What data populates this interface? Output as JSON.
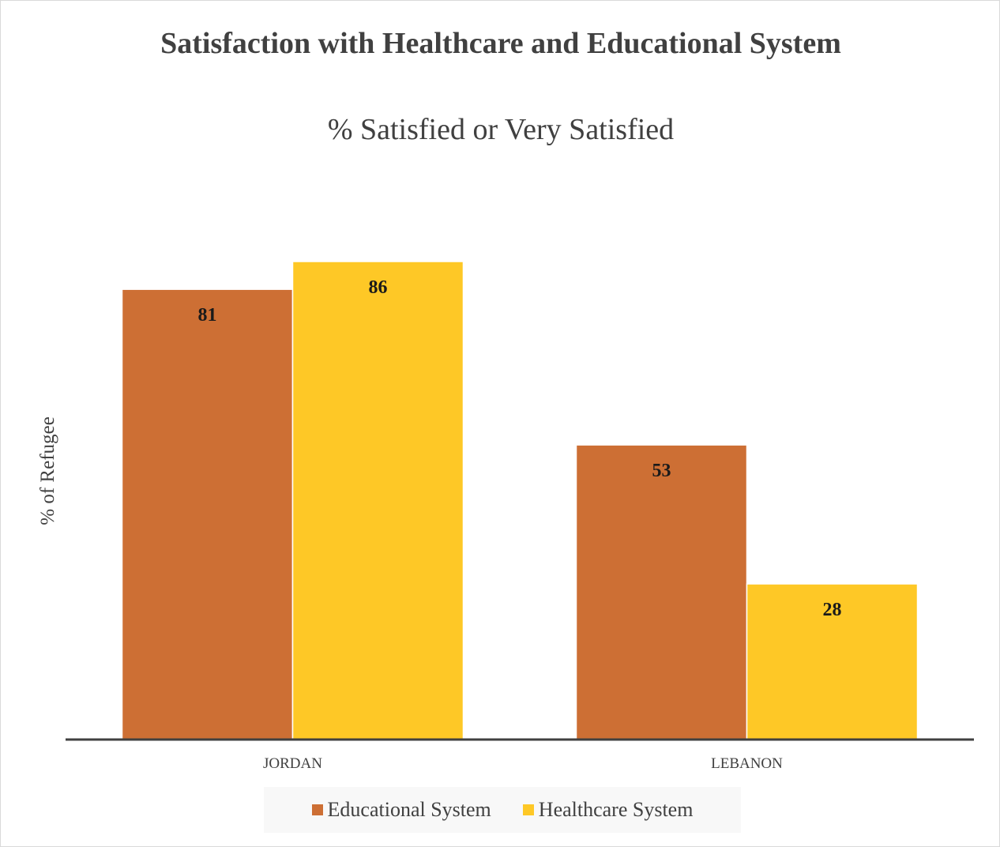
{
  "chart_data": {
    "type": "bar",
    "title": "Satisfaction with Healthcare and Educational System",
    "subtitle": "% Satisfied or Very Satisfied",
    "xlabel": "",
    "ylabel": "% of Refugee",
    "categories": [
      "JORDAN",
      "LEBANON"
    ],
    "series": [
      {
        "name": "Educational System",
        "color": "#CD6F34",
        "values": [
          81,
          53
        ]
      },
      {
        "name": "Healthcare System",
        "color": "#FEC826",
        "values": [
          86,
          28
        ]
      }
    ],
    "ylim": [
      0,
      86
    ],
    "grid": false,
    "legend_position": "bottom",
    "data_labels": true
  }
}
